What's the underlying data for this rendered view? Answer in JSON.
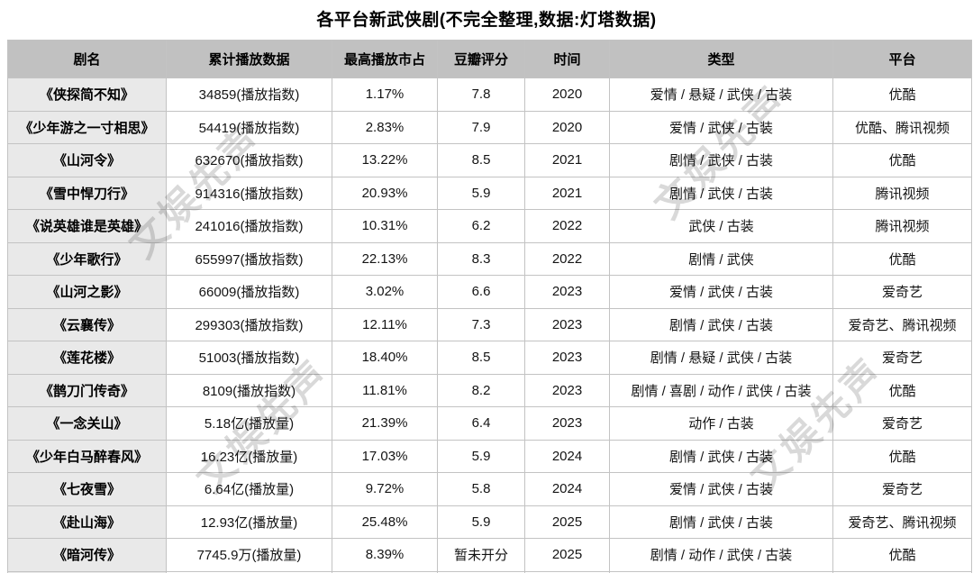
{
  "title": "各平台新武侠剧(不完全整理,数据:灯塔数据)",
  "watermark": {
    "text": "文娱先声"
  },
  "colors": {
    "header_bg": "#c1c1c1",
    "name_column_bg": "#e9e9e9",
    "border": "#c3c3c3",
    "text": "#141414",
    "watermark": "#d9d9d9"
  },
  "chart_data": {
    "type": "table",
    "title": "各平台新武侠剧(不完全整理,数据:灯塔数据)",
    "columns": [
      "剧名",
      "累计播放数据",
      "最高播放市占",
      "豆瓣评分",
      "时间",
      "类型",
      "平台"
    ],
    "rows": [
      [
        "《侠探简不知》",
        "34859(播放指数)",
        "1.17%",
        "7.8",
        "2020",
        "爱情 / 悬疑 / 武侠 / 古装",
        "优酷"
      ],
      [
        "《少年游之一寸相思》",
        "54419(播放指数)",
        "2.83%",
        "7.9",
        "2020",
        "爱情 / 武侠 / 古装",
        "优酷、腾讯视频"
      ],
      [
        "《山河令》",
        "632670(播放指数)",
        "13.22%",
        "8.5",
        "2021",
        "剧情 / 武侠 / 古装",
        "优酷"
      ],
      [
        "《雪中悍刀行》",
        "914316(播放指数)",
        "20.93%",
        "5.9",
        "2021",
        "剧情 / 武侠 / 古装",
        "腾讯视频"
      ],
      [
        "《说英雄谁是英雄》",
        "241016(播放指数)",
        "10.31%",
        "6.2",
        "2022",
        "武侠 / 古装",
        "腾讯视频"
      ],
      [
        "《少年歌行》",
        "655997(播放指数)",
        "22.13%",
        "8.3",
        "2022",
        "剧情 / 武侠",
        "优酷"
      ],
      [
        "《山河之影》",
        "66009(播放指数)",
        "3.02%",
        "6.6",
        "2023",
        "爱情 / 武侠 / 古装",
        "爱奇艺"
      ],
      [
        "《云襄传》",
        "299303(播放指数)",
        "12.11%",
        "7.3",
        "2023",
        "剧情 / 武侠 / 古装",
        "爱奇艺、腾讯视频"
      ],
      [
        "《莲花楼》",
        "51003(播放指数)",
        "18.40%",
        "8.5",
        "2023",
        "剧情 / 悬疑 / 武侠 / 古装",
        "爱奇艺"
      ],
      [
        "《鹊刀门传奇》",
        "8109(播放指数)",
        "11.81%",
        "8.2",
        "2023",
        "剧情 / 喜剧 / 动作 / 武侠 / 古装",
        "优酷"
      ],
      [
        "《一念关山》",
        "5.18亿(播放量)",
        "21.39%",
        "6.4",
        "2023",
        "动作 / 古装",
        "爱奇艺"
      ],
      [
        "《少年白马醉春风》",
        "16.23亿(播放量)",
        "17.03%",
        "5.9",
        "2024",
        "剧情 / 武侠 / 古装",
        "优酷"
      ],
      [
        "《七夜雪》",
        "6.64亿(播放量)",
        "9.72%",
        "5.8",
        "2024",
        "爱情 / 武侠 / 古装",
        "爱奇艺"
      ],
      [
        "《赴山海》",
        "12.93亿(播放量)",
        "25.48%",
        "5.9",
        "2025",
        "剧情 / 武侠 / 古装",
        "爱奇艺、腾讯视频"
      ],
      [
        "《暗河传》",
        "7745.9万(播放量)",
        "8.39%",
        "暂未开分",
        "2025",
        "剧情 / 动作 / 武侠 / 古装",
        "优酷"
      ]
    ]
  }
}
